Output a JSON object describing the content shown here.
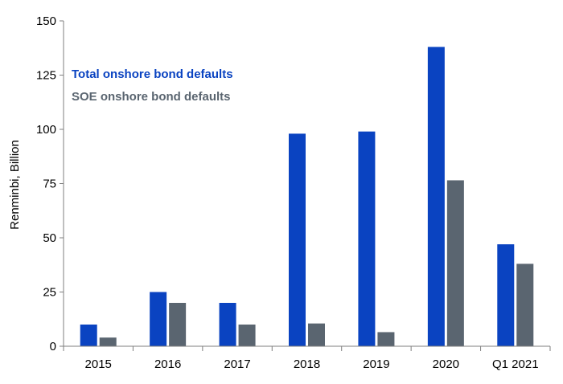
{
  "chart_data": {
    "type": "bar",
    "title": "",
    "xlabel": "",
    "ylabel": "Renminbi, Billion",
    "categories": [
      "2015",
      "2016",
      "2017",
      "2018",
      "2019",
      "2020",
      "Q1 2021"
    ],
    "series": [
      {
        "name": "Total onshore bond defaults",
        "color": "#0a43c1",
        "values": [
          10,
          25,
          20,
          98,
          99,
          138,
          47
        ]
      },
      {
        "name": "SOE onshore bond defaults",
        "color": "#5a6570",
        "values": [
          4,
          20,
          10,
          10.5,
          6.5,
          76.5,
          38
        ]
      }
    ],
    "ylim": [
      0,
      150
    ],
    "yticks": [
      0,
      25,
      50,
      75,
      100,
      125,
      150
    ],
    "grid": false,
    "legend_position": "top-left"
  }
}
